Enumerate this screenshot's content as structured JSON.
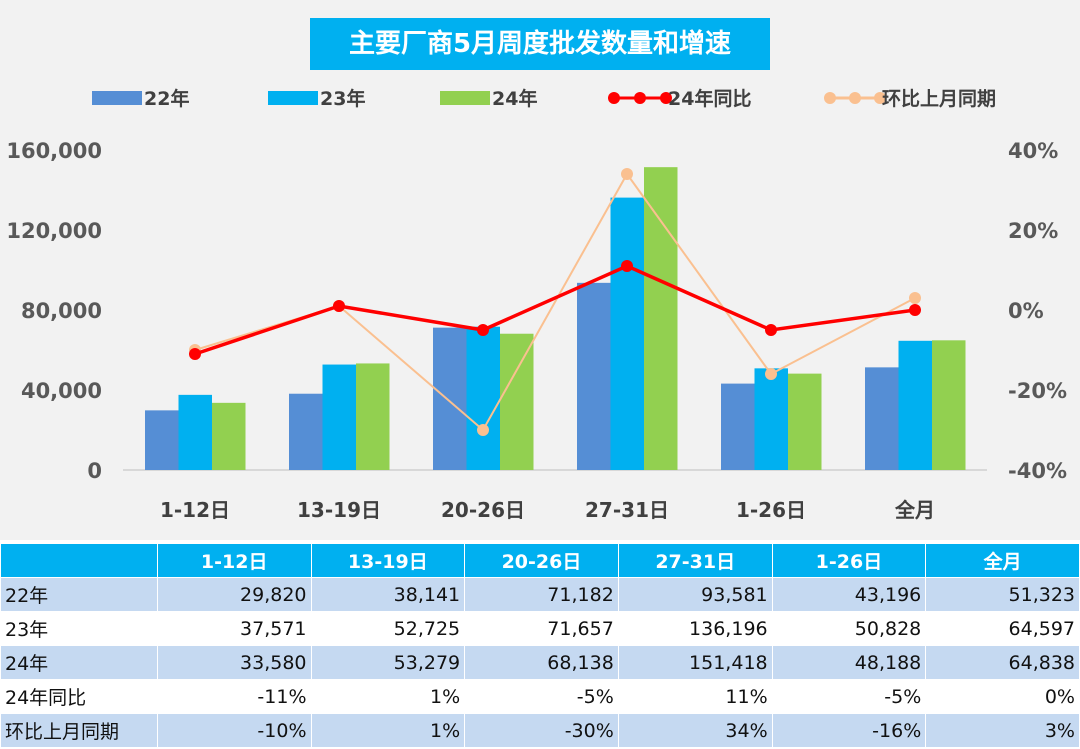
{
  "chart_data": {
    "type": "bar+line",
    "title": "主要厂商5月周度批发数量和增速",
    "categories": [
      "1-12日",
      "13-19日",
      "20-26日",
      "27-31日",
      "1-26日",
      "全月"
    ],
    "bar_series": [
      {
        "name": "22年",
        "color": "#558ed5",
        "values": [
          29820,
          38141,
          71182,
          93581,
          43196,
          51323
        ]
      },
      {
        "name": "23年",
        "color": "#00b0f0",
        "values": [
          37571,
          52725,
          71657,
          136196,
          50828,
          64597
        ]
      },
      {
        "name": "24年",
        "color": "#92d050",
        "values": [
          33580,
          53279,
          68138,
          151418,
          48188,
          64838
        ]
      }
    ],
    "line_series": [
      {
        "name": "24年同比",
        "color": "#ff0000",
        "values": [
          -11,
          1,
          -5,
          11,
          -5,
          0
        ]
      },
      {
        "name": "环比上月同期",
        "color": "#fac090",
        "values": [
          -10,
          1,
          -30,
          34,
          -16,
          3
        ]
      }
    ],
    "y_left": {
      "ylim": [
        0,
        160000
      ],
      "ticks": [
        "0",
        "40,000",
        "80,000",
        "120,000",
        "160,000"
      ]
    },
    "y_right": {
      "ylim": [
        -40,
        40
      ],
      "ticks": [
        "-40%",
        "-20%",
        "0%",
        "20%",
        "40%"
      ]
    },
    "legend": "top",
    "grid": false
  },
  "table": {
    "header": [
      "",
      "1-12日",
      "13-19日",
      "20-26日",
      "27-31日",
      "1-26日",
      "全月"
    ],
    "rows": [
      [
        "22年",
        "29,820",
        "38,141",
        "71,182",
        "93,581",
        "43,196",
        "51,323"
      ],
      [
        "23年",
        "37,571",
        "52,725",
        "71,657",
        "136,196",
        "50,828",
        "64,597"
      ],
      [
        "24年",
        "33,580",
        "53,279",
        "68,138",
        "151,418",
        "48,188",
        "64,838"
      ],
      [
        "24年同比",
        "-11%",
        "1%",
        "-5%",
        "11%",
        "-5%",
        "0%"
      ],
      [
        "环比上月同期",
        "-10%",
        "1%",
        "-30%",
        "34%",
        "-16%",
        "3%"
      ]
    ]
  }
}
